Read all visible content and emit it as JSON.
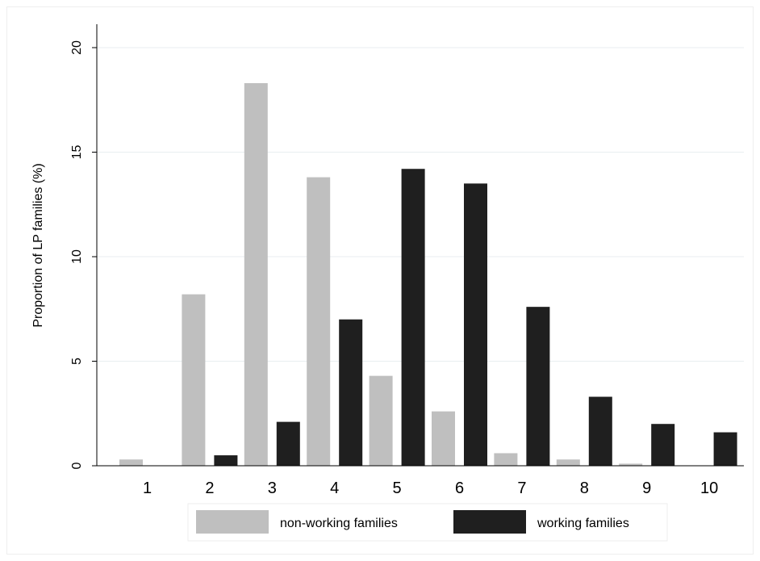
{
  "chart_data": {
    "type": "bar",
    "categories": [
      "1",
      "2",
      "3",
      "4",
      "5",
      "6",
      "7",
      "8",
      "9",
      "10"
    ],
    "series": [
      {
        "name": "non-working families",
        "color": "#bfbfbf",
        "values": [
          0.3,
          8.2,
          18.3,
          13.8,
          4.3,
          2.6,
          0.6,
          0.3,
          0.1,
          0.0
        ]
      },
      {
        "name": "working families",
        "color": "#1f1f1f",
        "values": [
          0.0,
          0.5,
          2.1,
          7.0,
          14.2,
          13.5,
          7.6,
          3.3,
          2.0,
          1.6
        ]
      }
    ],
    "title": "",
    "xlabel": "",
    "ylabel": "Proportion of LP families (%)",
    "ylim": [
      0,
      20
    ],
    "yticks": [
      "0",
      "5",
      "10",
      "15",
      "20"
    ],
    "grid": true,
    "legend_position": "bottom"
  }
}
